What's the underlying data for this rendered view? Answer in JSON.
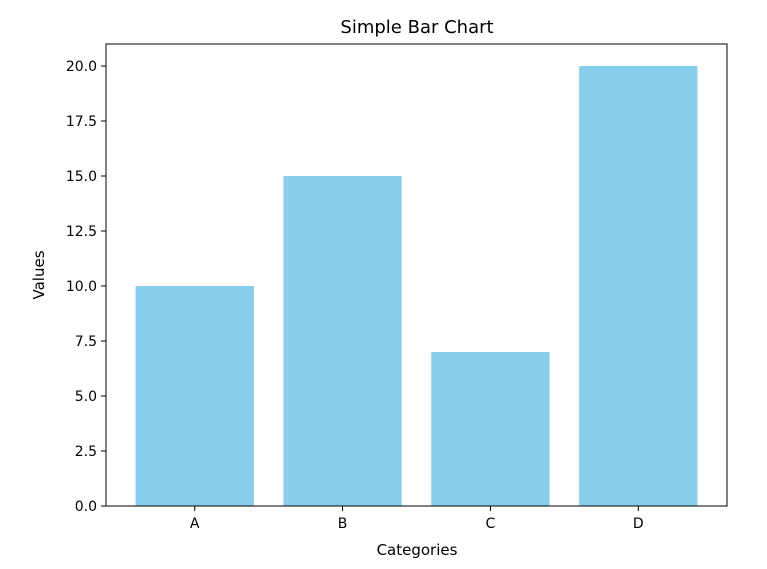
{
  "chart_data": {
    "type": "bar",
    "title": "Simple Bar Chart",
    "xlabel": "Categories",
    "ylabel": "Values",
    "categories": [
      "A",
      "B",
      "C",
      "D"
    ],
    "values": [
      10,
      15,
      7,
      20
    ],
    "ylim": [
      0,
      21
    ],
    "yticks": [
      0.0,
      2.5,
      5.0,
      7.5,
      10.0,
      12.5,
      15.0,
      17.5,
      20.0
    ],
    "ytick_labels": [
      "0.0",
      "2.5",
      "5.0",
      "7.5",
      "10.0",
      "12.5",
      "15.0",
      "17.5",
      "20.0"
    ],
    "bar_color": "#87ceeb",
    "grid": false,
    "legend": "none"
  }
}
